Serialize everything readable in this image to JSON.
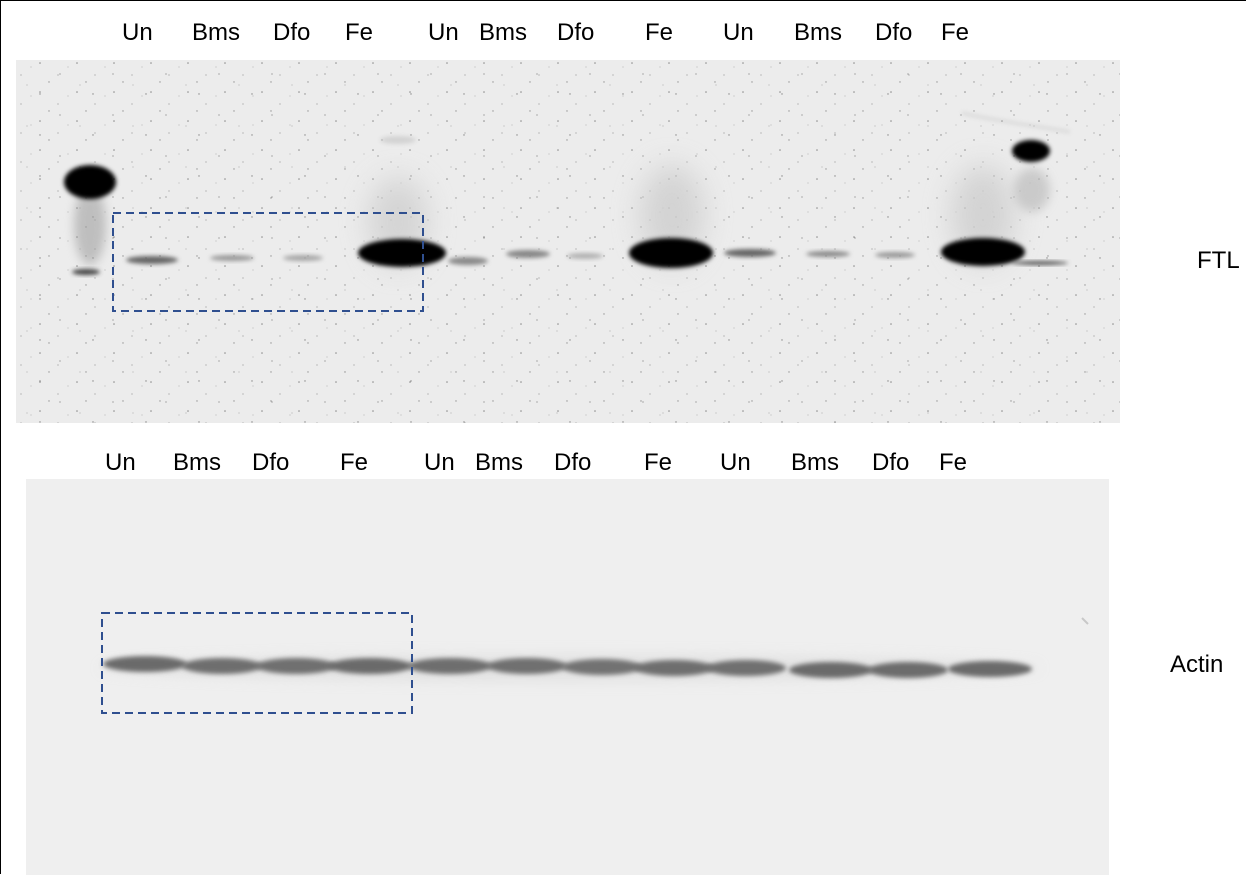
{
  "top_panel": {
    "lane_labels": [
      "Un",
      "Bms",
      "Dfo",
      "Fe",
      "Un",
      "Bms",
      "Dfo",
      "Fe",
      "Un",
      "Bms",
      "Dfo",
      "Fe"
    ],
    "protein_label": "FTL"
  },
  "bottom_panel": {
    "lane_labels": [
      "Un",
      "Bms",
      "Dfo",
      "Fe",
      "Un",
      "Bms",
      "Dfo",
      "Fe",
      "Un",
      "Bms",
      "Dfo",
      "Fe"
    ],
    "protein_label": "Actin"
  },
  "colors": {
    "blot_background_top": "#ececec",
    "blot_background_bottom": "#efefef",
    "band_dark": "#000000",
    "box_dash": "#2f4f8f"
  }
}
